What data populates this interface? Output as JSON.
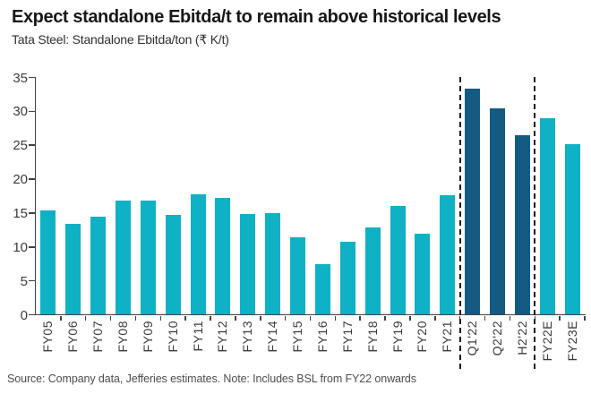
{
  "header": {
    "title": "Expect standalone Ebitda/t to remain above historical levels",
    "subtitle": "Tata Steel: Standalone Ebitda/ton (₹ K/t)"
  },
  "footer": {
    "source": "Source: Company data, Jefferies estimates. Note: Includes BSL from FY22 onwards"
  },
  "colors": {
    "bar_teal": "#0fb1c5",
    "bar_navy": "#155a82",
    "axis": "#424242",
    "tick_label": "#3b3b40",
    "separator": "#1b1b1b"
  },
  "chart_data": {
    "type": "bar",
    "title": "Expect standalone Ebitda/t to remain above historical levels",
    "subtitle": "Tata Steel: Standalone Ebitda/ton (₹ K/t)",
    "xlabel": "",
    "ylabel": "",
    "categories": [
      "FY05",
      "FY06",
      "FY07",
      "FY08",
      "FY09",
      "FY10",
      "FY11",
      "FY12",
      "FY13",
      "FY14",
      "FY15",
      "FY16",
      "FY17",
      "FY18",
      "FY19",
      "FY20",
      "FY21",
      "Q1'22",
      "Q2'22",
      "H2'22",
      "FY22E",
      "FY23E"
    ],
    "values": [
      15.4,
      13.4,
      14.5,
      16.9,
      16.9,
      14.7,
      17.8,
      17.3,
      14.8,
      15.0,
      11.4,
      7.5,
      10.8,
      12.9,
      16.1,
      12.0,
      17.6,
      33.3,
      30.4,
      26.5,
      29.0,
      25.2
    ],
    "navy_indices": [
      17,
      18,
      19
    ],
    "separators_after_index": [
      16,
      19
    ],
    "ylim": [
      0,
      35
    ],
    "yticks": [
      0,
      5,
      10,
      15,
      20,
      25,
      30,
      35
    ],
    "grid": false,
    "legend": false,
    "x_label_rotation": 90
  }
}
